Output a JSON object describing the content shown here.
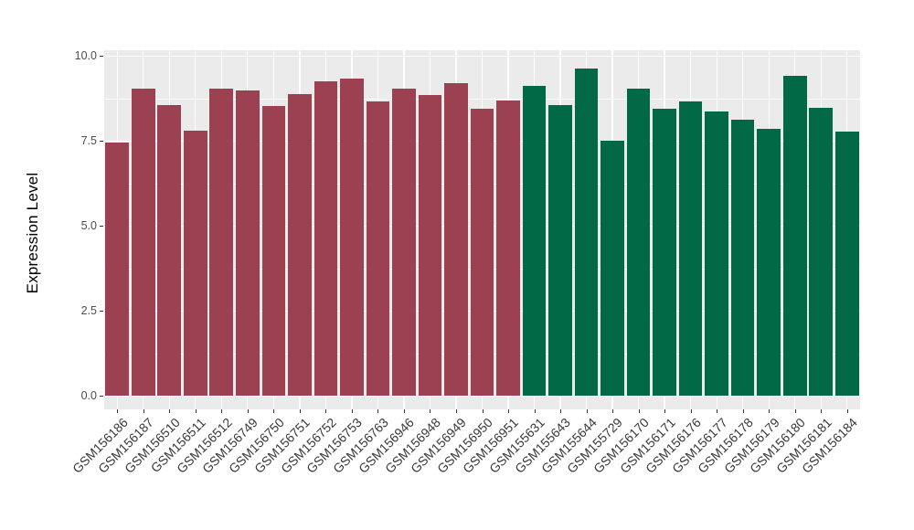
{
  "chart_data": {
    "type": "bar",
    "title": "",
    "xlabel": "",
    "ylabel": "Expression Level",
    "ylim": [
      0,
      10
    ],
    "yticks": [
      0.0,
      2.5,
      5.0,
      7.5,
      10.0
    ],
    "ytick_labels": [
      "0.0",
      "2.5",
      "5.0",
      "7.5",
      "10.0"
    ],
    "yticks_minor": [
      1.25,
      3.75,
      6.25,
      8.75
    ],
    "grid": "on",
    "legend_position": "none",
    "panel_background_color": "#EBEBEB",
    "gridline_color": "#FFFFFF",
    "bars": [
      {
        "label": "GSM156186",
        "value": 7.45,
        "color": "#9B4151"
      },
      {
        "label": "GSM156187",
        "value": 9.03,
        "color": "#9B4151"
      },
      {
        "label": "GSM156510",
        "value": 8.55,
        "color": "#9B4151"
      },
      {
        "label": "GSM156511",
        "value": 7.8,
        "color": "#9B4151"
      },
      {
        "label": "GSM156512",
        "value": 9.02,
        "color": "#9B4151"
      },
      {
        "label": "GSM156749",
        "value": 8.99,
        "color": "#9B4151"
      },
      {
        "label": "GSM156750",
        "value": 8.52,
        "color": "#9B4151"
      },
      {
        "label": "GSM156751",
        "value": 8.86,
        "color": "#9B4151"
      },
      {
        "label": "GSM156752",
        "value": 9.25,
        "color": "#9B4151"
      },
      {
        "label": "GSM156753",
        "value": 9.32,
        "color": "#9B4151"
      },
      {
        "label": "GSM156763",
        "value": 8.65,
        "color": "#9B4151"
      },
      {
        "label": "GSM156946",
        "value": 9.02,
        "color": "#9B4151"
      },
      {
        "label": "GSM156948",
        "value": 8.84,
        "color": "#9B4151"
      },
      {
        "label": "GSM156949",
        "value": 9.19,
        "color": "#9B4151"
      },
      {
        "label": "GSM156950",
        "value": 8.45,
        "color": "#9B4151"
      },
      {
        "label": "GSM156951",
        "value": 8.69,
        "color": "#9B4151"
      },
      {
        "label": "GSM155631",
        "value": 9.11,
        "color": "#016946"
      },
      {
        "label": "GSM155643",
        "value": 8.55,
        "color": "#016946"
      },
      {
        "label": "GSM155644",
        "value": 9.62,
        "color": "#016946"
      },
      {
        "label": "GSM155729",
        "value": 7.5,
        "color": "#016946"
      },
      {
        "label": "GSM156170",
        "value": 9.03,
        "color": "#016946"
      },
      {
        "label": "GSM156171",
        "value": 8.44,
        "color": "#016946"
      },
      {
        "label": "GSM156176",
        "value": 8.65,
        "color": "#016946"
      },
      {
        "label": "GSM156177",
        "value": 8.35,
        "color": "#016946"
      },
      {
        "label": "GSM156178",
        "value": 8.12,
        "color": "#016946"
      },
      {
        "label": "GSM156179",
        "value": 7.85,
        "color": "#016946"
      },
      {
        "label": "GSM156180",
        "value": 9.4,
        "color": "#016946"
      },
      {
        "label": "GSM156181",
        "value": 8.46,
        "color": "#016946"
      },
      {
        "label": "GSM156184",
        "value": 7.76,
        "color": "#016946"
      }
    ]
  },
  "colors": {
    "group_left": "#9B4151",
    "group_right": "#016946",
    "axis_text": "#4D4D4D",
    "tick_mark": "#333333",
    "axis_title_text": "#000000"
  }
}
